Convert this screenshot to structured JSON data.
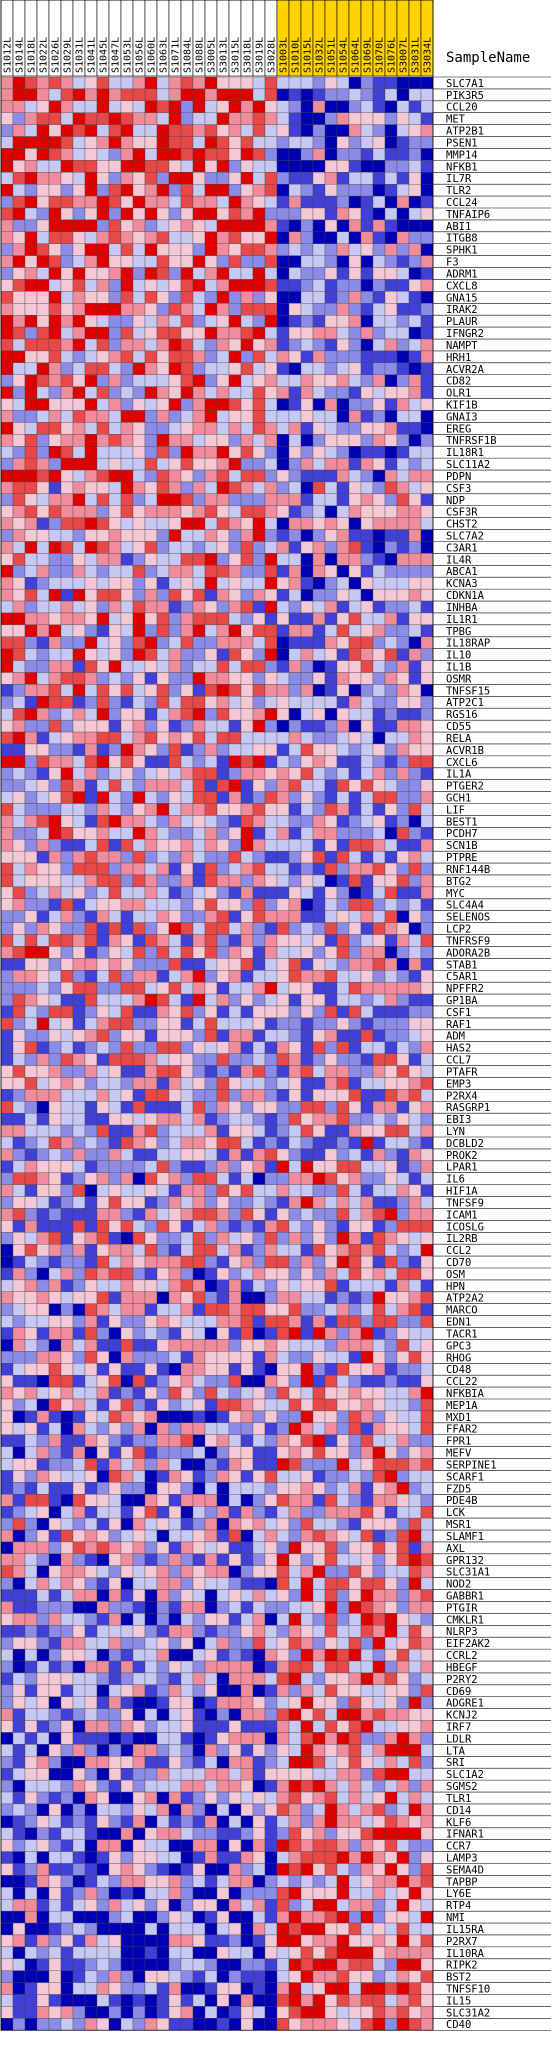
{
  "chart_data": {
    "type": "heatmap",
    "row_header": "SampleName",
    "columns": [
      {
        "name": "S1012L",
        "group": "a"
      },
      {
        "name": "S1014L",
        "group": "a"
      },
      {
        "name": "S1018L",
        "group": "a"
      },
      {
        "name": "S1022L",
        "group": "a"
      },
      {
        "name": "S1026L",
        "group": "a"
      },
      {
        "name": "S1029L",
        "group": "a"
      },
      {
        "name": "S1031L",
        "group": "a"
      },
      {
        "name": "S1041L",
        "group": "a"
      },
      {
        "name": "S1045L",
        "group": "a"
      },
      {
        "name": "S1047L",
        "group": "a"
      },
      {
        "name": "S1053L",
        "group": "a"
      },
      {
        "name": "S1056L",
        "group": "a"
      },
      {
        "name": "S1060L",
        "group": "a"
      },
      {
        "name": "S1063L",
        "group": "a"
      },
      {
        "name": "S1071L",
        "group": "a"
      },
      {
        "name": "S1084L",
        "group": "a"
      },
      {
        "name": "S1088L",
        "group": "a"
      },
      {
        "name": "S3005L",
        "group": "a"
      },
      {
        "name": "S3013L",
        "group": "a"
      },
      {
        "name": "S3015L",
        "group": "a"
      },
      {
        "name": "S3018L",
        "group": "a"
      },
      {
        "name": "S3019L",
        "group": "a"
      },
      {
        "name": "S3028L",
        "group": "a"
      },
      {
        "name": "S1003L",
        "group": "b"
      },
      {
        "name": "S1010L",
        "group": "b"
      },
      {
        "name": "S1015L",
        "group": "b"
      },
      {
        "name": "S1032L",
        "group": "b"
      },
      {
        "name": "S1051L",
        "group": "b"
      },
      {
        "name": "S1054L",
        "group": "b"
      },
      {
        "name": "S1064L",
        "group": "b"
      },
      {
        "name": "S1069L",
        "group": "b"
      },
      {
        "name": "S1070L",
        "group": "b"
      },
      {
        "name": "S1076L",
        "group": "b"
      },
      {
        "name": "S3007L",
        "group": "b"
      },
      {
        "name": "S3031L",
        "group": "b"
      },
      {
        "name": "S3034L",
        "group": "b"
      }
    ],
    "rows": [
      "SLC7A1",
      "PIK3R5",
      "CCL20",
      "MET",
      "ATP2B1",
      "PSEN1",
      "MMP14",
      "NFKB1",
      "IL7R",
      "TLR2",
      "CCL24",
      "TNFAIP6",
      "ABI1",
      "ITGB8",
      "SPHK1",
      "F3",
      "ADRM1",
      "CXCL8",
      "GNA15",
      "IRAK2",
      "PLAUR",
      "IFNGR2",
      "NAMPT",
      "HRH1",
      "ACVR2A",
      "CD82",
      "OLR1",
      "KIF1B",
      "GNAI3",
      "EREG",
      "TNFRSF1B",
      "IL18R1",
      "SLC11A2",
      "PDPN",
      "CSF3",
      "NDP",
      "CSF3R",
      "CHST2",
      "SLC7A2",
      "C3AR1",
      "IL4R",
      "ABCA1",
      "KCNA3",
      "CDKN1A",
      "INHBA",
      "IL1R1",
      "TPBG",
      "IL18RAP",
      "IL10",
      "IL1B",
      "OSMR",
      "TNFSF15",
      "ATP2C1",
      "RGS16",
      "CD55",
      "RELA",
      "ACVR1B",
      "CXCL6",
      "IL1A",
      "PTGER2",
      "GCH1",
      "LIF",
      "BEST1",
      "PCDH7",
      "SCN1B",
      "PTPRE",
      "RNF144B",
      "BTG2",
      "MYC",
      "SLC4A4",
      "SELENOS",
      "LCP2",
      "TNFRSF9",
      "ADORA2B",
      "STAB1",
      "C5AR1",
      "NPFFR2",
      "GP1BA",
      "CSF1",
      "RAF1",
      "ADM",
      "HAS2",
      "CCL7",
      "PTAFR",
      "EMP3",
      "P2RX4",
      "RASGRP1",
      "EBI3",
      "LYN",
      "DCBLD2",
      "PROK2",
      "LPAR1",
      "IL6",
      "HIF1A",
      "TNFSF9",
      "ICAM1",
      "ICOSLG",
      "IL2RB",
      "CCL2",
      "CD70",
      "OSM",
      "HPN",
      "ATP2A2",
      "MARCO",
      "EDN1",
      "TACR1",
      "GPC3",
      "RHOG",
      "CD48",
      "CCL22",
      "NFKBIA",
      "MEP1A",
      "MXD1",
      "FFAR2",
      "FPR1",
      "MEFV",
      "SERPINE1",
      "SCARF1",
      "FZD5",
      "PDE4B",
      "LCK",
      "MSR1",
      "SLAMF1",
      "AXL",
      "GPR132",
      "SLC31A1",
      "NOD2",
      "GABBR1",
      "PTGIR",
      "CMKLR1",
      "NLRP3",
      "EIF2AK2",
      "CCRL2",
      "HBEGF",
      "P2RY2",
      "CD69",
      "ADGRE1",
      "KCNJ2",
      "IRF7",
      "LDLR",
      "LTA",
      "SRI",
      "SLC1A2",
      "SGMS2",
      "TLR1",
      "CD14",
      "KLF6",
      "IFNAR1",
      "CCR7",
      "LAMP3",
      "SEMA4D",
      "TAPBP",
      "LY6E",
      "RTP4",
      "NMI",
      "IL15RA",
      "P2RX7",
      "IL10RA",
      "RIPK2",
      "BST2",
      "TNFSF10",
      "IL15",
      "SLC31A2",
      "CD40"
    ],
    "color_scale": [
      "#0000b4",
      "#4040d8",
      "#8c8ce8",
      "#c8c8f4",
      "#f4c8d4",
      "#f08c9c",
      "#e84848",
      "#e00000"
    ],
    "highlight_color": "#ffd200",
    "seed": 20240611
  }
}
